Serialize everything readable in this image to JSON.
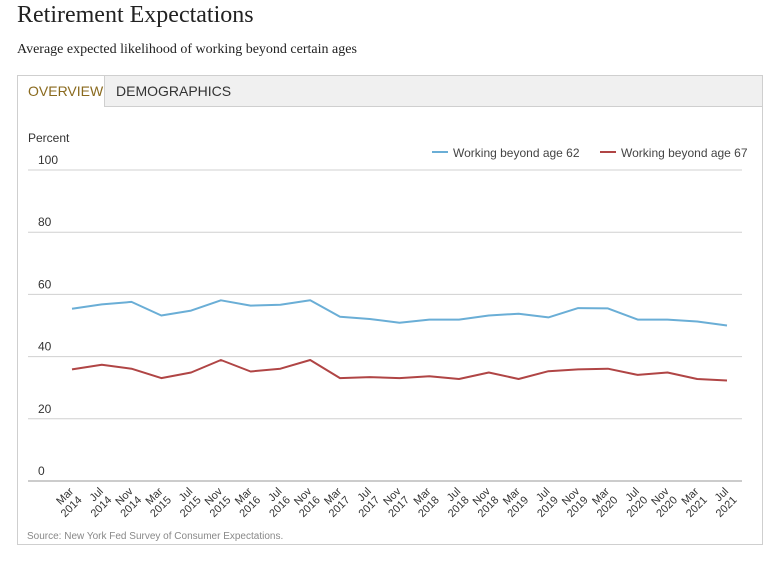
{
  "header": {
    "title": "Retirement Expectations",
    "subtitle": "Average expected likelihood of working beyond certain ages"
  },
  "tabs": [
    {
      "label": "OVERVIEW",
      "active": true
    },
    {
      "label": "DEMOGRAPHICS",
      "active": false
    }
  ],
  "source": "Source: New York Fed Survey of Consumer Expectations.",
  "colors": {
    "series_62": "#6aaed6",
    "series_67": "#b04545",
    "tab_active": "#8a6a1e"
  },
  "chart_data": {
    "type": "line",
    "ylabel": "Percent",
    "ylim": [
      0,
      100
    ],
    "yticks": [
      0,
      20,
      40,
      60,
      80,
      100
    ],
    "grid": true,
    "legend_position": "top-right",
    "categories": [
      [
        "Mar",
        "2014"
      ],
      [
        "Jul",
        "2014"
      ],
      [
        "Nov",
        "2014"
      ],
      [
        "Mar",
        "2015"
      ],
      [
        "Jul",
        "2015"
      ],
      [
        "Nov",
        "2015"
      ],
      [
        "Mar",
        "2016"
      ],
      [
        "Jul",
        "2016"
      ],
      [
        "Nov",
        "2016"
      ],
      [
        "Mar",
        "2017"
      ],
      [
        "Jul",
        "2017"
      ],
      [
        "Nov",
        "2017"
      ],
      [
        "Mar",
        "2018"
      ],
      [
        "Jul",
        "2018"
      ],
      [
        "Nov",
        "2018"
      ],
      [
        "Mar",
        "2019"
      ],
      [
        "Jul",
        "2019"
      ],
      [
        "Nov",
        "2019"
      ],
      [
        "Mar",
        "2020"
      ],
      [
        "Jul",
        "2020"
      ],
      [
        "Nov",
        "2020"
      ],
      [
        "Mar",
        "2021"
      ],
      [
        "Jul",
        "2021"
      ]
    ],
    "series": [
      {
        "name": "Working beyond age 62",
        "color": "#6aaed6",
        "values": [
          55.4,
          56.8,
          57.6,
          53.2,
          54.8,
          58.1,
          56.4,
          56.7,
          58.1,
          52.8,
          52.1,
          50.9,
          51.9,
          51.9,
          53.2,
          53.8,
          52.6,
          55.6,
          55.5,
          51.9,
          51.9,
          51.3,
          50.0
        ]
      },
      {
        "name": "Working beyond age 67",
        "color": "#b04545",
        "values": [
          35.9,
          37.4,
          36.1,
          33.1,
          34.9,
          38.9,
          35.2,
          36.1,
          38.9,
          33.1,
          33.4,
          33.1,
          33.7,
          32.8,
          34.9,
          32.8,
          35.3,
          35.9,
          36.1,
          34.1,
          34.9,
          32.8,
          32.3
        ]
      }
    ]
  }
}
